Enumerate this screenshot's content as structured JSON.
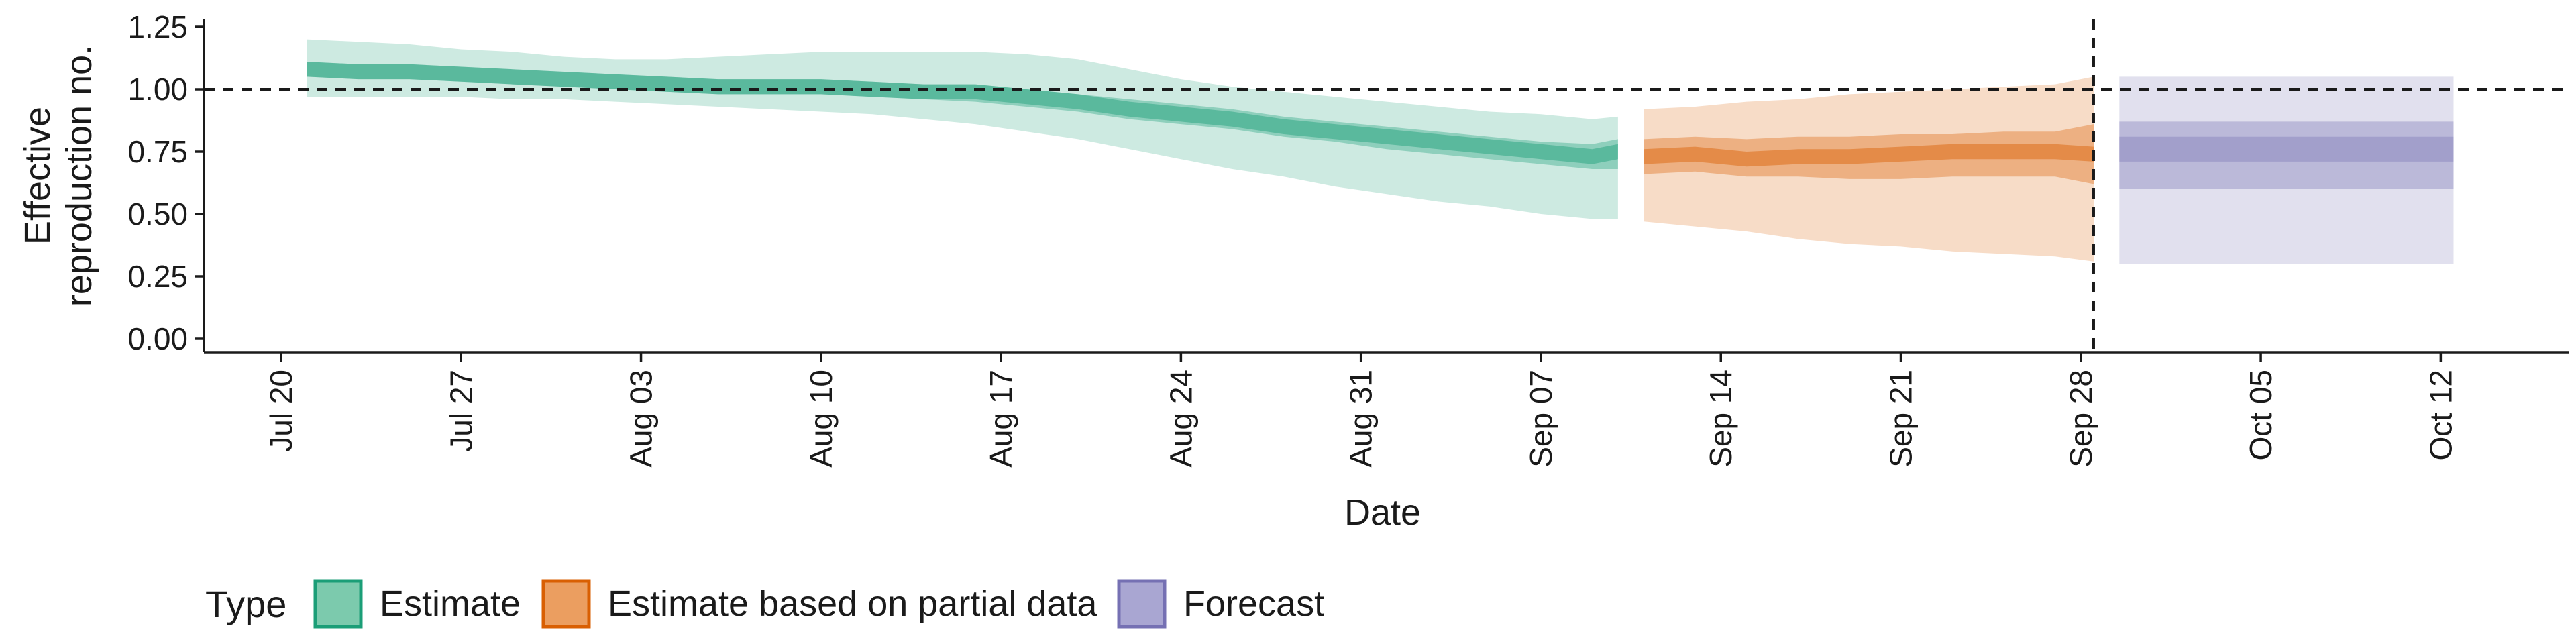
{
  "chart_data": {
    "type": "area",
    "title": "",
    "xlabel": "Date",
    "ylabel_lines": [
      "Effective",
      "reproduction no."
    ],
    "x_tick_labels": [
      "Jul 20",
      "Jul 27",
      "Aug 03",
      "Aug 10",
      "Aug 17",
      "Aug 24",
      "Aug 31",
      "Sep 07",
      "Sep 14",
      "Sep 21",
      "Sep 28",
      "Oct 05",
      "Oct 12"
    ],
    "x_tick_days": [
      0,
      7,
      14,
      21,
      28,
      35,
      42,
      49,
      56,
      63,
      70,
      77,
      84
    ],
    "x_range_days": [
      -3,
      89
    ],
    "y_ticks": [
      "0.00",
      "0.25",
      "0.50",
      "0.75",
      "1.00",
      "1.25"
    ],
    "ylim": [
      0,
      1.25
    ],
    "reference_hline": 1.0,
    "reference_vline_day": 70.5,
    "grid": false,
    "legend": {
      "title": "Type",
      "position": "bottom-left",
      "items": [
        {
          "label": "Estimate",
          "fill": "#7ccaad",
          "stroke": "#1b9e77"
        },
        {
          "label": "Estimate based on partial data",
          "fill": "#eb9e60",
          "stroke": "#d95f02"
        },
        {
          "label": "Forecast",
          "fill": "#a9a6d2",
          "stroke": "#7570b3"
        }
      ]
    },
    "series": [
      {
        "name": "Estimate",
        "color": "#1b9e77",
        "x_day": [
          1,
          3,
          5,
          7,
          9,
          11,
          13,
          15,
          17,
          19,
          21,
          23,
          25,
          27,
          29,
          31,
          33,
          35,
          37,
          39,
          41,
          43,
          45,
          47,
          49,
          51,
          52
        ],
        "median": [
          1.08,
          1.07,
          1.07,
          1.06,
          1.05,
          1.04,
          1.03,
          1.02,
          1.01,
          1.01,
          1.01,
          1.0,
          0.99,
          0.99,
          0.97,
          0.95,
          0.92,
          0.9,
          0.88,
          0.85,
          0.83,
          0.81,
          0.79,
          0.77,
          0.75,
          0.73,
          0.75
        ],
        "lower_50": [
          1.05,
          1.04,
          1.04,
          1.03,
          1.02,
          1.01,
          1.0,
          0.99,
          0.98,
          0.98,
          0.98,
          0.97,
          0.96,
          0.95,
          0.93,
          0.91,
          0.88,
          0.86,
          0.84,
          0.81,
          0.79,
          0.76,
          0.74,
          0.72,
          0.7,
          0.68,
          0.68
        ],
        "upper_50": [
          1.11,
          1.1,
          1.1,
          1.09,
          1.08,
          1.07,
          1.06,
          1.05,
          1.04,
          1.04,
          1.04,
          1.03,
          1.02,
          1.02,
          1.0,
          0.98,
          0.96,
          0.94,
          0.92,
          0.89,
          0.87,
          0.85,
          0.83,
          0.81,
          0.79,
          0.78,
          0.8
        ],
        "lower_90": [
          0.97,
          0.97,
          0.97,
          0.97,
          0.96,
          0.96,
          0.95,
          0.94,
          0.93,
          0.92,
          0.91,
          0.9,
          0.88,
          0.86,
          0.83,
          0.8,
          0.76,
          0.72,
          0.68,
          0.65,
          0.61,
          0.58,
          0.55,
          0.53,
          0.5,
          0.48,
          0.48
        ],
        "upper_90": [
          1.2,
          1.19,
          1.18,
          1.16,
          1.15,
          1.13,
          1.12,
          1.12,
          1.13,
          1.14,
          1.15,
          1.15,
          1.15,
          1.15,
          1.14,
          1.12,
          1.08,
          1.04,
          1.01,
          0.99,
          0.97,
          0.95,
          0.93,
          0.91,
          0.9,
          0.88,
          0.89
        ]
      },
      {
        "name": "Estimate based on partial data",
        "color": "#d95f02",
        "x_day": [
          53,
          55,
          57,
          59,
          61,
          63,
          65,
          67,
          69,
          70.5
        ],
        "median": [
          0.73,
          0.74,
          0.72,
          0.73,
          0.73,
          0.74,
          0.75,
          0.75,
          0.75,
          0.74
        ],
        "lower_50": [
          0.66,
          0.67,
          0.65,
          0.65,
          0.64,
          0.64,
          0.65,
          0.65,
          0.65,
          0.62
        ],
        "upper_50": [
          0.8,
          0.81,
          0.8,
          0.81,
          0.81,
          0.82,
          0.82,
          0.83,
          0.83,
          0.86
        ],
        "lower_90": [
          0.47,
          0.45,
          0.43,
          0.4,
          0.38,
          0.37,
          0.35,
          0.34,
          0.33,
          0.31
        ],
        "upper_90": [
          0.92,
          0.93,
          0.95,
          0.96,
          0.98,
          0.99,
          1.0,
          1.01,
          1.02,
          1.05
        ]
      },
      {
        "name": "Forecast",
        "color": "#7570b3",
        "x_day": [
          71.5,
          84.5
        ],
        "median": [
          0.76,
          0.76
        ],
        "lower_20": [
          0.71,
          0.71
        ],
        "upper_20": [
          0.81,
          0.81
        ],
        "lower_50": [
          0.6,
          0.6
        ],
        "upper_50": [
          0.87,
          0.87
        ],
        "lower_90": [
          0.3,
          0.3
        ],
        "upper_90": [
          1.05,
          1.05
        ]
      }
    ]
  }
}
